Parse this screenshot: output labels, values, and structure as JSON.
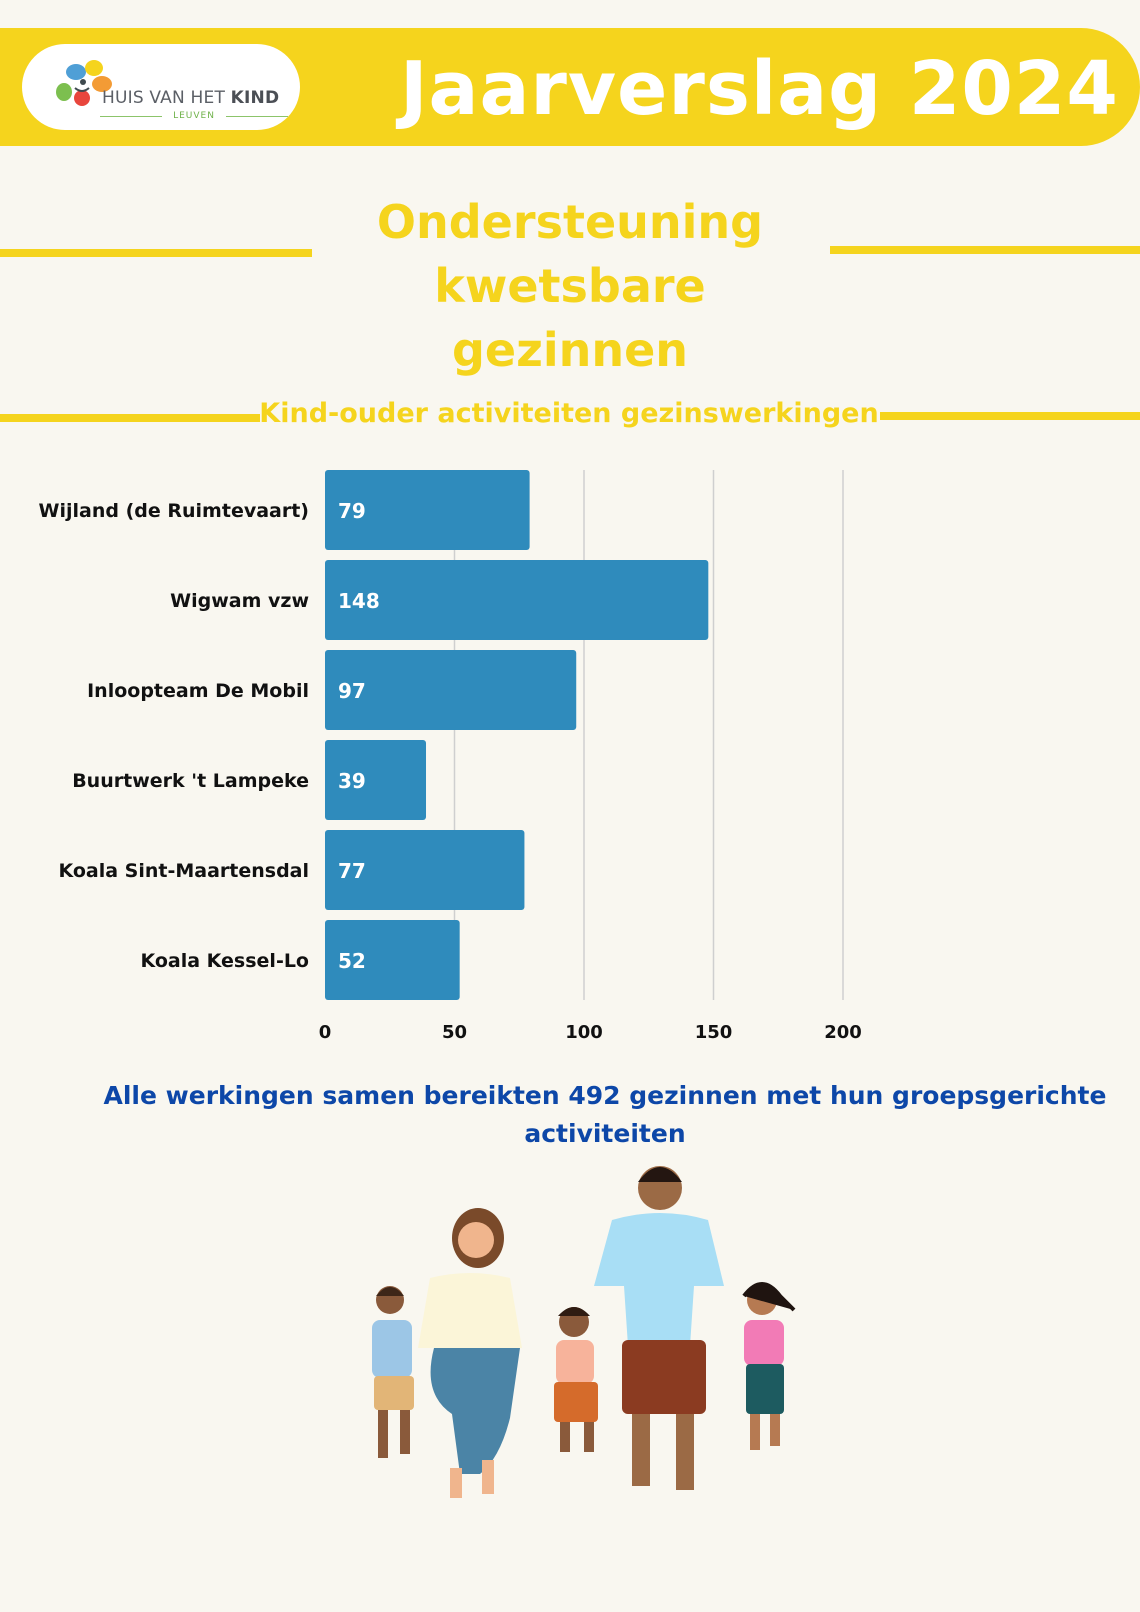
{
  "header": {
    "logo_text_main": "HUIS VAN HET",
    "logo_text_bold": "KIND",
    "logo_subtext": "LEUVEN",
    "title": "Jaarverslag 2024"
  },
  "section": {
    "heading_line1": "Ondersteuning",
    "heading_line2": "kwetsbare gezinnen"
  },
  "chart_data": {
    "type": "bar",
    "orientation": "horizontal",
    "title": "Kind-ouder activiteiten gezinswerkingen",
    "categories": [
      "Wijland (de Ruimtevaart)",
      "Wigwam vzw",
      "Inloopteam De Mobil",
      "Buurtwerk 't Lampeke",
      "Koala Sint-Maartensdal",
      "Koala Kessel-Lo"
    ],
    "values": [
      79,
      148,
      97,
      39,
      77,
      52
    ],
    "xlim": [
      0,
      200
    ],
    "xticks": [
      0,
      50,
      100,
      150,
      200
    ],
    "grid": true,
    "data_labels": true,
    "bar_color": "#2f8bbc"
  },
  "summary": "Alle werkingen samen bereikten 492 gezinnen met hun groepsgerichte activiteiten",
  "colors": {
    "accent_yellow": "#f5d41d",
    "summary_blue": "#0d47a8",
    "background": "#f9f7f0"
  }
}
